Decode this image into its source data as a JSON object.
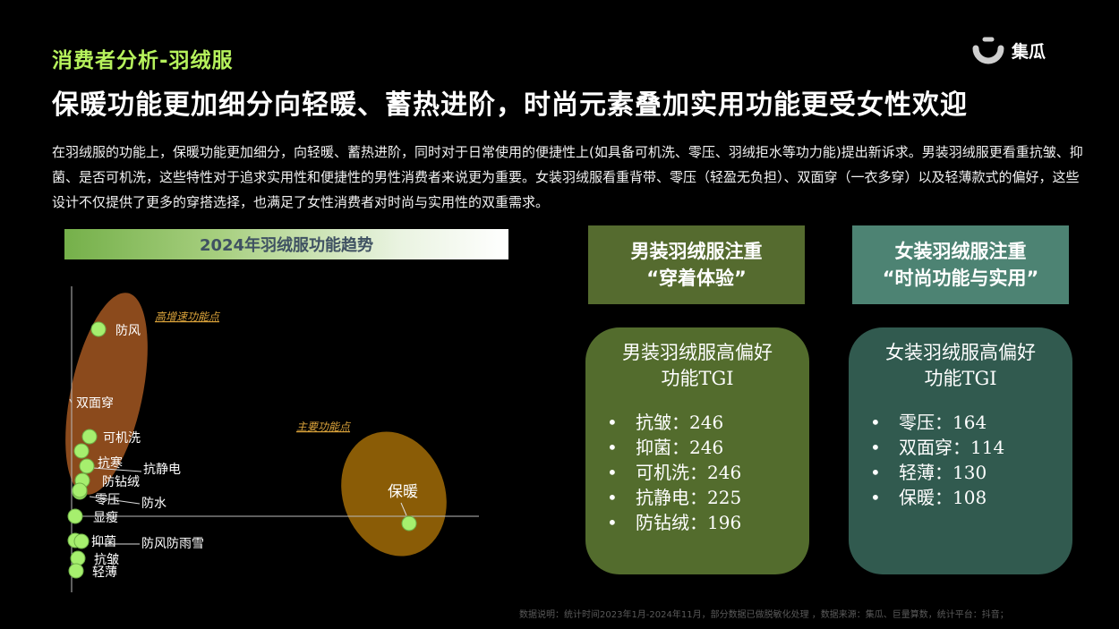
{
  "header": {
    "section_title": "消费者分析-羽绒服",
    "headline": "保暖功能更加细分向轻暖、蓄热进阶，时尚元素叠加实用功能更受女性欢迎",
    "logo_text": "集瓜"
  },
  "body_text": "在羽绒服的功能上，保暖功能更加细分，向轻暖、蓄热进阶，同时对于日常使用的便捷性上(如具备可机洗、零压、羽绒拒水等功力能)提出新诉求。男装羽绒服更看重抗皱、抑菌、是否可机洗，这些特性对于追求实用性和便捷性的男性消费者来说更为重要。女装羽绒服看重背带、零压（轻盈无负担）、双面穿（一衣多穿）以及轻薄款式的偏好，这些设计不仅提供了更多的穿搭选择，也满足了女性消费者对时尚与实用性的双重需求。",
  "chart_data": {
    "type": "scatter",
    "title": "2024年羽绒服功能趋势",
    "clusters": [
      {
        "label": "高增速功能点",
        "color": "#8b4a1c"
      },
      {
        "label": "主要功能点",
        "color": "#8a5c06"
      }
    ],
    "points": [
      "防风",
      "双面穿",
      "可机洗",
      "抗寒",
      "抗静电",
      "防钻绒",
      "零压",
      "防水",
      "显瘦",
      "保暖",
      "抑菌",
      "防风防雨雪",
      "抗皱",
      "轻薄"
    ],
    "point_color": "#a6ef6e"
  },
  "male_panel": {
    "head_line1": "男装羽绒服注重",
    "head_line2": "“穿着体验”",
    "card_title_line1": "男装羽绒服高偏好",
    "card_title_line2": "功能TGI",
    "items": [
      "抗皱：246",
      "抑菌：246",
      "可机洗：246",
      "抗静电：225",
      "防钻绒：196"
    ]
  },
  "female_panel": {
    "head_line1": "女装羽绒服注重",
    "head_line2": "“时尚功能与实用”",
    "card_title_line1": "女装羽绒服高偏好",
    "card_title_line2": "功能TGI",
    "items": [
      "零压：164",
      "双面穿：114",
      "轻薄：130",
      "保暖：108"
    ]
  },
  "footnote": "数据说明：统计时间2023年1月-2024年11月，部分数据已做脱敏化处理 ，数据来源：集瓜、巨量算数，统计平台：抖音；"
}
